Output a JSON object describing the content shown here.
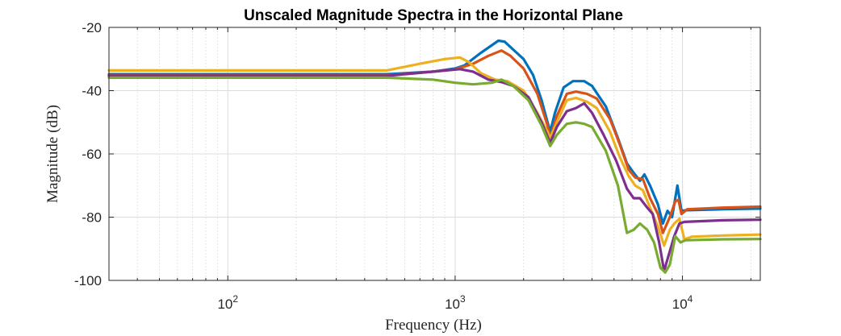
{
  "chart_data": {
    "type": "line",
    "title": "Unscaled Magnitude Spectra in the Horizontal Plane",
    "xlabel": "Frequency (Hz)",
    "ylabel": "Magnitude (dB)",
    "x_scale": "log",
    "xlim": [
      30,
      22000
    ],
    "ylim": [
      -100,
      -20
    ],
    "grid": true,
    "x_ticks": [
      {
        "value": 100,
        "base": "10",
        "exp": "2"
      },
      {
        "value": 1000,
        "base": "10",
        "exp": "3"
      },
      {
        "value": 10000,
        "base": "10",
        "exp": "4"
      }
    ],
    "y_ticks": [
      -20,
      -40,
      -60,
      -80,
      -100
    ],
    "series": [
      {
        "color": "#0072BD",
        "points": [
          [
            30,
            -34.8
          ],
          [
            200,
            -34.8
          ],
          [
            500,
            -34.8
          ],
          [
            800,
            -34.0
          ],
          [
            1000,
            -33.0
          ],
          [
            1100,
            -32.0
          ],
          [
            1300,
            -28.0
          ],
          [
            1550,
            -24.2
          ],
          [
            1650,
            -24.5
          ],
          [
            1800,
            -27.0
          ],
          [
            2000,
            -30.0
          ],
          [
            2200,
            -35.0
          ],
          [
            2400,
            -43.0
          ],
          [
            2550,
            -50.0
          ],
          [
            2620,
            -53.0
          ],
          [
            2750,
            -47.0
          ],
          [
            3000,
            -39.0
          ],
          [
            3300,
            -37.0
          ],
          [
            3700,
            -37.0
          ],
          [
            4000,
            -38.5
          ],
          [
            4600,
            -45.0
          ],
          [
            5200,
            -55.0
          ],
          [
            5700,
            -63.0
          ],
          [
            6100,
            -66.0
          ],
          [
            6500,
            -68.5
          ],
          [
            6800,
            -66.5
          ],
          [
            7200,
            -70.0
          ],
          [
            7800,
            -76.0
          ],
          [
            8200,
            -82.0
          ],
          [
            8600,
            -78.0
          ],
          [
            9000,
            -80.0
          ],
          [
            9500,
            -70.0
          ],
          [
            9900,
            -78.0
          ],
          [
            10500,
            -77.8
          ],
          [
            15000,
            -77.5
          ],
          [
            22000,
            -77.3
          ]
        ]
      },
      {
        "color": "#D95319",
        "points": [
          [
            30,
            -35.2
          ],
          [
            200,
            -35.2
          ],
          [
            500,
            -35.2
          ],
          [
            800,
            -34.0
          ],
          [
            1000,
            -33.3
          ],
          [
            1200,
            -31.5
          ],
          [
            1400,
            -29.0
          ],
          [
            1600,
            -27.3
          ],
          [
            1750,
            -29.0
          ],
          [
            2000,
            -33.0
          ],
          [
            2300,
            -41.0
          ],
          [
            2550,
            -51.0
          ],
          [
            2620,
            -55.0
          ],
          [
            2800,
            -48.0
          ],
          [
            3100,
            -41.0
          ],
          [
            3400,
            -40.3
          ],
          [
            3800,
            -41.0
          ],
          [
            4200,
            -42.5
          ],
          [
            4800,
            -49.0
          ],
          [
            5300,
            -57.0
          ],
          [
            5800,
            -65.0
          ],
          [
            6200,
            -67.5
          ],
          [
            6700,
            -68.0
          ],
          [
            7200,
            -74.0
          ],
          [
            7800,
            -79.0
          ],
          [
            8200,
            -85.0
          ],
          [
            8800,
            -80.0
          ],
          [
            9300,
            -75.0
          ],
          [
            9600,
            -74.5
          ],
          [
            9900,
            -79.0
          ],
          [
            10500,
            -77.5
          ],
          [
            15000,
            -77.0
          ],
          [
            22000,
            -76.7
          ]
        ]
      },
      {
        "color": "#EDB120",
        "points": [
          [
            30,
            -33.6
          ],
          [
            200,
            -33.6
          ],
          [
            500,
            -33.6
          ],
          [
            700,
            -31.5
          ],
          [
            900,
            -30.0
          ],
          [
            1050,
            -29.5
          ],
          [
            1150,
            -31.0
          ],
          [
            1300,
            -34.5
          ],
          [
            1500,
            -36.5
          ],
          [
            1700,
            -37.0
          ],
          [
            2000,
            -40.0
          ],
          [
            2300,
            -47.0
          ],
          [
            2550,
            -53.0
          ],
          [
            2620,
            -55.0
          ],
          [
            2800,
            -50.0
          ],
          [
            3100,
            -43.0
          ],
          [
            3400,
            -42.3
          ],
          [
            3800,
            -43.5
          ],
          [
            4200,
            -45.5
          ],
          [
            4800,
            -53.0
          ],
          [
            5300,
            -61.0
          ],
          [
            5800,
            -67.0
          ],
          [
            6200,
            -70.0
          ],
          [
            6700,
            -71.5
          ],
          [
            7200,
            -77.0
          ],
          [
            7800,
            -83.0
          ],
          [
            8300,
            -89.0
          ],
          [
            8800,
            -84.0
          ],
          [
            9200,
            -82.0
          ],
          [
            9700,
            -80.5
          ],
          [
            10200,
            -87.0
          ],
          [
            11000,
            -86.2
          ],
          [
            15000,
            -85.8
          ],
          [
            22000,
            -85.5
          ]
        ]
      },
      {
        "color": "#7E2F8E",
        "points": [
          [
            30,
            -35.3
          ],
          [
            200,
            -35.3
          ],
          [
            500,
            -35.3
          ],
          [
            800,
            -34.0
          ],
          [
            1050,
            -33.2
          ],
          [
            1200,
            -34.0
          ],
          [
            1400,
            -36.5
          ],
          [
            1600,
            -37.3
          ],
          [
            1800,
            -38.5
          ],
          [
            2100,
            -42.0
          ],
          [
            2400,
            -50.0
          ],
          [
            2620,
            -56.5
          ],
          [
            2800,
            -51.5
          ],
          [
            3100,
            -46.5
          ],
          [
            3400,
            -45.5
          ],
          [
            3700,
            -44.0
          ],
          [
            4000,
            -47.0
          ],
          [
            4500,
            -54.0
          ],
          [
            5100,
            -62.0
          ],
          [
            5700,
            -71.0
          ],
          [
            6100,
            -74.0
          ],
          [
            6500,
            -74.0
          ],
          [
            7000,
            -77.0
          ],
          [
            7400,
            -79.0
          ],
          [
            7900,
            -88.0
          ],
          [
            8300,
            -97.0
          ],
          [
            8700,
            -92.0
          ],
          [
            9200,
            -86.0
          ],
          [
            9700,
            -82.0
          ],
          [
            10200,
            -81.5
          ],
          [
            15000,
            -81.0
          ],
          [
            22000,
            -80.8
          ]
        ]
      },
      {
        "color": "#77AC30",
        "points": [
          [
            30,
            -35.9
          ],
          [
            200,
            -35.9
          ],
          [
            500,
            -35.9
          ],
          [
            800,
            -36.5
          ],
          [
            1000,
            -37.5
          ],
          [
            1200,
            -38.0
          ],
          [
            1450,
            -37.5
          ],
          [
            1600,
            -36.5
          ],
          [
            1800,
            -38.5
          ],
          [
            2100,
            -43.0
          ],
          [
            2400,
            -51.0
          ],
          [
            2620,
            -57.5
          ],
          [
            2800,
            -54.0
          ],
          [
            3100,
            -50.5
          ],
          [
            3400,
            -50.0
          ],
          [
            3700,
            -50.5
          ],
          [
            4000,
            -51.5
          ],
          [
            4600,
            -59.0
          ],
          [
            5200,
            -70.0
          ],
          [
            5700,
            -85.0
          ],
          [
            6100,
            -84.0
          ],
          [
            6500,
            -82.0
          ],
          [
            7000,
            -84.0
          ],
          [
            7500,
            -88.0
          ],
          [
            8000,
            -96.0
          ],
          [
            8400,
            -97.5
          ],
          [
            8800,
            -95.0
          ],
          [
            9300,
            -86.0
          ],
          [
            9800,
            -88.0
          ],
          [
            10300,
            -87.3
          ],
          [
            15000,
            -87.0
          ],
          [
            22000,
            -86.9
          ]
        ]
      }
    ]
  }
}
